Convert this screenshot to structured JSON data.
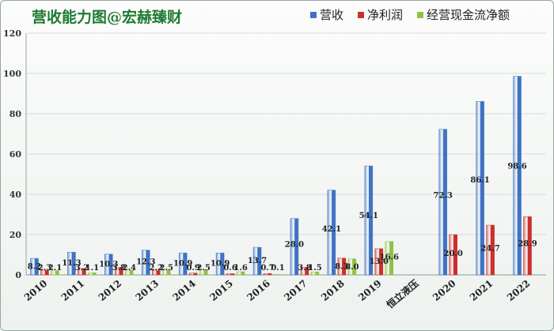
{
  "chart_data": {
    "type": "bar",
    "title": "营收能力图@宏赫臻财",
    "categories": [
      "2010",
      "2011",
      "2012",
      "2013",
      "2014",
      "2015",
      "2016",
      "2017",
      "2018",
      "2019",
      "恒立液压",
      "2020",
      "2021",
      "2022"
    ],
    "ylim": [
      0,
      120
    ],
    "yticks": [
      0,
      20,
      40,
      60,
      80,
      100,
      120
    ],
    "grid": true,
    "legend_position": "top-right",
    "series": [
      {
        "name": "营收",
        "color": "#3f72c4",
        "values": [
          8.2,
          11.3,
          10.3,
          12.3,
          10.9,
          10.9,
          13.7,
          28.0,
          42.1,
          54.1,
          null,
          72.3,
          86.1,
          98.6
        ],
        "labels": [
          "8.2",
          "11.3",
          "10.3",
          "12.3",
          "10.9",
          "10.9",
          "13.7",
          "28.0",
          "42.1",
          "54.1",
          "",
          "72.3",
          "86.1",
          "98.6"
        ]
      },
      {
        "name": "净利润",
        "color": "#c9302c",
        "values": [
          2.3,
          3.2,
          3.8,
          2.2,
          0.9,
          0.6,
          0.7,
          3.8,
          8.3,
          13.0,
          null,
          20.0,
          24.7,
          28.9
        ],
        "labels": [
          "2.3",
          "3.2",
          "3.8",
          "2.2",
          "0.9",
          "0.6",
          "0.7",
          "3.8",
          "8.3",
          "13.0",
          "",
          "20.0",
          "24.7",
          "28.9"
        ]
      },
      {
        "name": "经营现金流净额",
        "color": "#92c046",
        "values": [
          2.1,
          1.1,
          2.4,
          2.5,
          2.5,
          1.6,
          0.1,
          1.5,
          8.0,
          16.6,
          null,
          null,
          null,
          null
        ],
        "labels": [
          "2.1",
          "1.1",
          "2.4",
          "2.5",
          "2.5",
          "1.6",
          "0.1",
          "1.5",
          "8.0",
          "16.6",
          "",
          "",
          "",
          ""
        ]
      }
    ]
  }
}
